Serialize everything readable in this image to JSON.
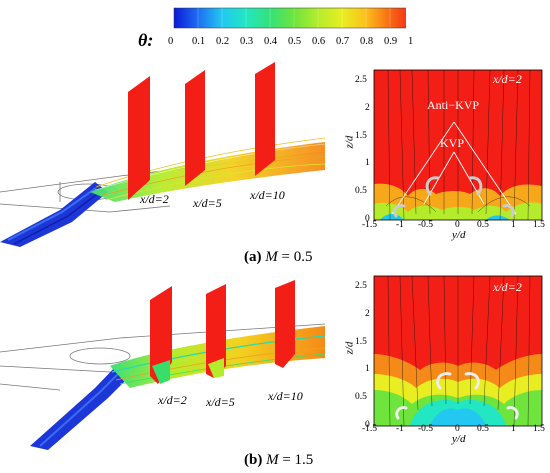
{
  "colorbar": {
    "symbol": "θ:",
    "ticks": [
      "0",
      "0.1",
      "0.2",
      "0.3",
      "0.4",
      "0.5",
      "0.6",
      "0.7",
      "0.8",
      "0.9",
      "1"
    ],
    "stops": [
      "#0a1ad8",
      "#1e6ef2",
      "#22c8f0",
      "#23e6c2",
      "#34e27a",
      "#6ee43c",
      "#b4ec2c",
      "#e8ee22",
      "#fbbf1c",
      "#f86a14",
      "#f31e16"
    ]
  },
  "panels": [
    {
      "caption_label": "(a)",
      "caption_var": "M",
      "caption_value": "= 0.5",
      "positions": [
        "x/d=2",
        "x/d=5",
        "x/d=10"
      ],
      "plot": {
        "title": "x/d=2",
        "ylabel": "z/d",
        "xlabel": "y/d",
        "xticks": [
          "-1.5",
          "-1",
          "-0.5",
          "0",
          "0.5",
          "1",
          "1.5"
        ],
        "yticks": [
          "0",
          "0.5",
          "1",
          "1.5",
          "2",
          "2.5"
        ],
        "annotations": [
          "Anti−KVP",
          "KVP"
        ]
      }
    },
    {
      "caption_label": "(b)",
      "caption_var": "M",
      "caption_value": "= 1.5",
      "positions": [
        "x/d=2",
        "x/d=5",
        "x/d=10"
      ],
      "plot": {
        "title": "x/d=2",
        "ylabel": "z/d",
        "xlabel": "y/d",
        "xticks": [
          "-1.5",
          "-1",
          "-0.5",
          "0",
          "0.5",
          "1",
          "1.5"
        ],
        "yticks": [
          "0",
          "0.5",
          "1",
          "1.5",
          "2",
          "2.5"
        ]
      }
    }
  ]
}
